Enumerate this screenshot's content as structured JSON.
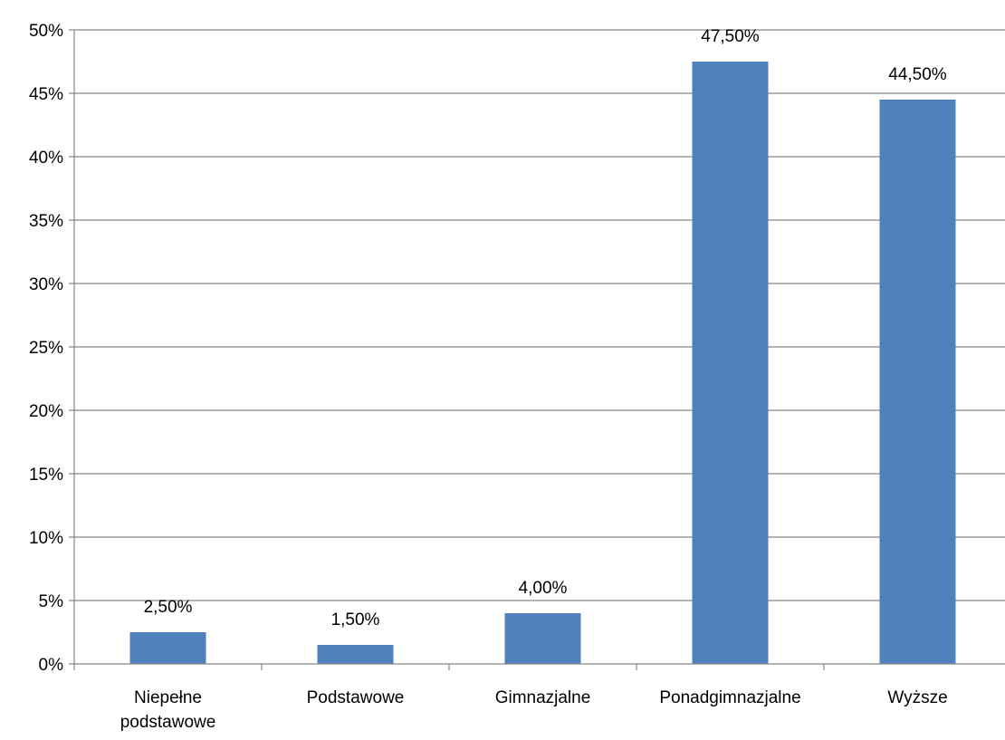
{
  "chart_data": {
    "type": "bar",
    "categories": [
      [
        "Niepełne",
        "podstawowe"
      ],
      [
        "Podstawowe"
      ],
      [
        "Gimnazjalne"
      ],
      [
        "Ponadgimnazjalne"
      ],
      [
        "Wyższe"
      ]
    ],
    "values": [
      2.5,
      1.5,
      4.0,
      47.5,
      44.5
    ],
    "data_labels": [
      "2,50%",
      "1,50%",
      "4,00%",
      "47,50%",
      "44,50%"
    ],
    "y_ticks": [
      {
        "value": 0,
        "label": "0%"
      },
      {
        "value": 5,
        "label": "5%"
      },
      {
        "value": 10,
        "label": "10%"
      },
      {
        "value": 15,
        "label": "15%"
      },
      {
        "value": 20,
        "label": "20%"
      },
      {
        "value": 25,
        "label": "25%"
      },
      {
        "value": 30,
        "label": "30%"
      },
      {
        "value": 35,
        "label": "35%"
      },
      {
        "value": 40,
        "label": "40%"
      },
      {
        "value": 45,
        "label": "45%"
      },
      {
        "value": 50,
        "label": "50%"
      }
    ],
    "ylim": [
      0,
      50
    ],
    "grid": true,
    "legend": "none",
    "bar_color": "#4F81BD",
    "grid_color": "#868686",
    "axis_color": "#868686"
  }
}
